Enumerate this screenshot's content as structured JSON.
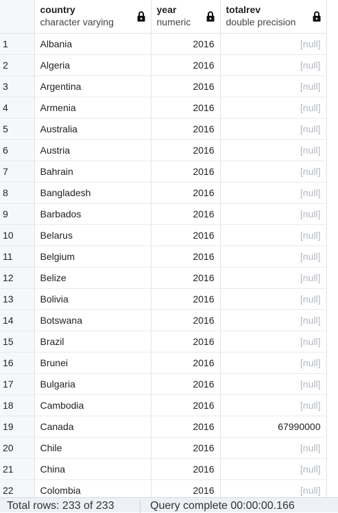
{
  "columns": [
    {
      "name": "country",
      "type": "character varying"
    },
    {
      "name": "year",
      "type": "numeric"
    },
    {
      "name": "totalrev",
      "type": "double precision"
    }
  ],
  "rows": [
    {
      "n": "1",
      "country": "Albania",
      "year": "2016",
      "totalrev": "[null]"
    },
    {
      "n": "2",
      "country": "Algeria",
      "year": "2016",
      "totalrev": "[null]"
    },
    {
      "n": "3",
      "country": "Argentina",
      "year": "2016",
      "totalrev": "[null]"
    },
    {
      "n": "4",
      "country": "Armenia",
      "year": "2016",
      "totalrev": "[null]"
    },
    {
      "n": "5",
      "country": "Australia",
      "year": "2016",
      "totalrev": "[null]"
    },
    {
      "n": "6",
      "country": "Austria",
      "year": "2016",
      "totalrev": "[null]"
    },
    {
      "n": "7",
      "country": "Bahrain",
      "year": "2016",
      "totalrev": "[null]"
    },
    {
      "n": "8",
      "country": "Bangladesh",
      "year": "2016",
      "totalrev": "[null]"
    },
    {
      "n": "9",
      "country": "Barbados",
      "year": "2016",
      "totalrev": "[null]"
    },
    {
      "n": "10",
      "country": "Belarus",
      "year": "2016",
      "totalrev": "[null]"
    },
    {
      "n": "11",
      "country": "Belgium",
      "year": "2016",
      "totalrev": "[null]"
    },
    {
      "n": "12",
      "country": "Belize",
      "year": "2016",
      "totalrev": "[null]"
    },
    {
      "n": "13",
      "country": "Bolivia",
      "year": "2016",
      "totalrev": "[null]"
    },
    {
      "n": "14",
      "country": "Botswana",
      "year": "2016",
      "totalrev": "[null]"
    },
    {
      "n": "15",
      "country": "Brazil",
      "year": "2016",
      "totalrev": "[null]"
    },
    {
      "n": "16",
      "country": "Brunei",
      "year": "2016",
      "totalrev": "[null]"
    },
    {
      "n": "17",
      "country": "Bulgaria",
      "year": "2016",
      "totalrev": "[null]"
    },
    {
      "n": "18",
      "country": "Cambodia",
      "year": "2016",
      "totalrev": "[null]"
    },
    {
      "n": "19",
      "country": "Canada",
      "year": "2016",
      "totalrev": "67990000"
    },
    {
      "n": "20",
      "country": "Chile",
      "year": "2016",
      "totalrev": "[null]"
    },
    {
      "n": "21",
      "country": "China",
      "year": "2016",
      "totalrev": "[null]"
    },
    {
      "n": "22",
      "country": "Colombia",
      "year": "2016",
      "totalrev": "[null]"
    }
  ],
  "status": {
    "total_rows": "Total rows: 233 of 233",
    "query": "Query complete 00:00:00.166"
  },
  "icons": {
    "column_lock": "lock-icon"
  },
  "colors": {
    "null_text": "#b3b8bf",
    "index_bg": "#f5f7fa",
    "status_bg": "#edf0f4"
  }
}
